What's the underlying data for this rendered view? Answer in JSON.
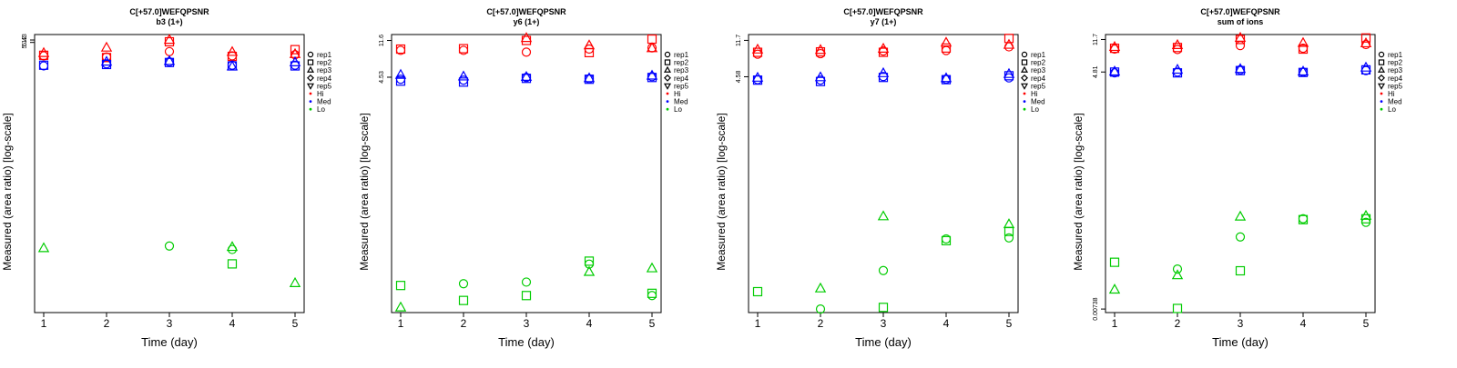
{
  "legend": {
    "shape_entries": [
      {
        "label": "rep1",
        "shape": "circle"
      },
      {
        "label": "rep2",
        "shape": "square"
      },
      {
        "label": "rep3",
        "shape": "triangle"
      },
      {
        "label": "rep4",
        "shape": "diamond"
      },
      {
        "label": "rep5",
        "shape": "triangle-down"
      }
    ],
    "color_entries": [
      {
        "label": "Hi",
        "color": "#ff0000"
      },
      {
        "label": "Med",
        "color": "#0000ff"
      },
      {
        "label": "Lo",
        "color": "#00cc00"
      }
    ]
  },
  "chart_data": [
    {
      "type": "scatter",
      "title": "C[+57.0]WEFQPSNR",
      "subtitle": "b3 (1+)",
      "xlabel": "Time (day)",
      "ylabel": "Measured (area ratio) [log-scale]",
      "log_y": true,
      "x_ticks": [
        "1",
        "2",
        "3",
        "4",
        "5"
      ],
      "y_ticks": [
        "5.43",
        "5.12"
      ],
      "ylim": [
        0.00738,
        6.2
      ],
      "grid": false,
      "legend_position": "right",
      "points": [
        {
          "x": 1,
          "y": 3.7,
          "rep": "rep1",
          "level": "Hi"
        },
        {
          "x": 1,
          "y": 3.75,
          "rep": "rep2",
          "level": "Hi"
        },
        {
          "x": 1,
          "y": 3.95,
          "rep": "rep3",
          "level": "Hi"
        },
        {
          "x": 1,
          "y": 2.9,
          "rep": "rep1",
          "level": "Med"
        },
        {
          "x": 1,
          "y": 2.95,
          "rep": "rep2",
          "level": "Med"
        },
        {
          "x": 1,
          "y": 0.035,
          "rep": "rep3",
          "level": "Lo"
        },
        {
          "x": 2,
          "y": 3.6,
          "rep": "rep1",
          "level": "Hi"
        },
        {
          "x": 2,
          "y": 3.55,
          "rep": "rep2",
          "level": "Hi"
        },
        {
          "x": 2,
          "y": 4.5,
          "rep": "rep3",
          "level": "Hi"
        },
        {
          "x": 2,
          "y": 3.05,
          "rep": "rep1",
          "level": "Med"
        },
        {
          "x": 2,
          "y": 3.0,
          "rep": "rep2",
          "level": "Med"
        },
        {
          "x": 2,
          "y": 3.2,
          "rep": "rep3",
          "level": "Med"
        },
        {
          "x": 3,
          "y": 4.1,
          "rep": "rep1",
          "level": "Hi"
        },
        {
          "x": 3,
          "y": 5.2,
          "rep": "rep2",
          "level": "Hi"
        },
        {
          "x": 3,
          "y": 5.43,
          "rep": "rep3",
          "level": "Hi"
        },
        {
          "x": 3,
          "y": 3.2,
          "rep": "rep1",
          "level": "Med"
        },
        {
          "x": 3,
          "y": 3.15,
          "rep": "rep2",
          "level": "Med"
        },
        {
          "x": 3,
          "y": 3.25,
          "rep": "rep3",
          "level": "Med"
        },
        {
          "x": 3,
          "y": 0.037,
          "rep": "rep1",
          "level": "Lo"
        },
        {
          "x": 4,
          "y": 3.7,
          "rep": "rep1",
          "level": "Hi"
        },
        {
          "x": 4,
          "y": 3.65,
          "rep": "rep2",
          "level": "Hi"
        },
        {
          "x": 4,
          "y": 4.05,
          "rep": "rep3",
          "level": "Hi"
        },
        {
          "x": 4,
          "y": 2.95,
          "rep": "rep1",
          "level": "Med"
        },
        {
          "x": 4,
          "y": 2.9,
          "rep": "rep2",
          "level": "Med"
        },
        {
          "x": 4,
          "y": 2.85,
          "rep": "rep3",
          "level": "Med"
        },
        {
          "x": 4,
          "y": 0.034,
          "rep": "rep1",
          "level": "Lo"
        },
        {
          "x": 4,
          "y": 0.024,
          "rep": "rep2",
          "level": "Lo"
        },
        {
          "x": 4,
          "y": 0.036,
          "rep": "rep3",
          "level": "Lo"
        },
        {
          "x": 5,
          "y": 3.8,
          "rep": "rep1",
          "level": "Hi"
        },
        {
          "x": 5,
          "y": 4.3,
          "rep": "rep2",
          "level": "Hi"
        },
        {
          "x": 5,
          "y": 3.85,
          "rep": "rep3",
          "level": "Hi"
        },
        {
          "x": 5,
          "y": 2.95,
          "rep": "rep1",
          "level": "Med"
        },
        {
          "x": 5,
          "y": 2.9,
          "rep": "rep2",
          "level": "Med"
        },
        {
          "x": 5,
          "y": 3.15,
          "rep": "rep3",
          "level": "Med"
        },
        {
          "x": 5,
          "y": 0.015,
          "rep": "rep3",
          "level": "Lo"
        }
      ]
    },
    {
      "type": "scatter",
      "title": "C[+57.0]WEFQPSNR",
      "subtitle": "y6 (1+)",
      "xlabel": "Time (day)",
      "ylabel": "Measured (area ratio) [log-scale]",
      "log_y": true,
      "x_ticks": [
        "1",
        "2",
        "3",
        "4",
        "5"
      ],
      "y_ticks": [
        "11.6",
        "4.53"
      ],
      "ylim": [
        0.011,
        13.5
      ],
      "grid": false,
      "legend_position": "right",
      "points": [
        {
          "x": 1,
          "y": 9.0,
          "rep": "rep1",
          "level": "Hi"
        },
        {
          "x": 1,
          "y": 9.3,
          "rep": "rep2",
          "level": "Hi"
        },
        {
          "x": 1,
          "y": 4.3,
          "rep": "rep1",
          "level": "Med"
        },
        {
          "x": 1,
          "y": 4.1,
          "rep": "rep2",
          "level": "Med"
        },
        {
          "x": 1,
          "y": 4.8,
          "rep": "rep3",
          "level": "Med"
        },
        {
          "x": 1,
          "y": 0.022,
          "rep": "rep2",
          "level": "Lo"
        },
        {
          "x": 1,
          "y": 0.0125,
          "rep": "rep3",
          "level": "Lo"
        },
        {
          "x": 2,
          "y": 9.0,
          "rep": "rep1",
          "level": "Hi"
        },
        {
          "x": 2,
          "y": 9.4,
          "rep": "rep2",
          "level": "Hi"
        },
        {
          "x": 2,
          "y": 4.2,
          "rep": "rep1",
          "level": "Med"
        },
        {
          "x": 2,
          "y": 4.0,
          "rep": "rep2",
          "level": "Med"
        },
        {
          "x": 2,
          "y": 4.6,
          "rep": "rep3",
          "level": "Med"
        },
        {
          "x": 2,
          "y": 0.023,
          "rep": "rep1",
          "level": "Lo"
        },
        {
          "x": 2,
          "y": 0.015,
          "rep": "rep2",
          "level": "Lo"
        },
        {
          "x": 3,
          "y": 8.6,
          "rep": "rep1",
          "level": "Hi"
        },
        {
          "x": 3,
          "y": 11.6,
          "rep": "rep2",
          "level": "Hi"
        },
        {
          "x": 3,
          "y": 12.3,
          "rep": "rep3",
          "level": "Hi"
        },
        {
          "x": 3,
          "y": 4.5,
          "rep": "rep1",
          "level": "Med"
        },
        {
          "x": 3,
          "y": 4.4,
          "rep": "rep2",
          "level": "Med"
        },
        {
          "x": 3,
          "y": 4.55,
          "rep": "rep3",
          "level": "Med"
        },
        {
          "x": 3,
          "y": 0.024,
          "rep": "rep1",
          "level": "Lo"
        },
        {
          "x": 3,
          "y": 0.017,
          "rep": "rep2",
          "level": "Lo"
        },
        {
          "x": 4,
          "y": 9.3,
          "rep": "rep1",
          "level": "Hi"
        },
        {
          "x": 4,
          "y": 8.5,
          "rep": "rep2",
          "level": "Hi"
        },
        {
          "x": 4,
          "y": 10.2,
          "rep": "rep3",
          "level": "Hi"
        },
        {
          "x": 4,
          "y": 4.35,
          "rep": "rep1",
          "level": "Med"
        },
        {
          "x": 4,
          "y": 4.3,
          "rep": "rep2",
          "level": "Med"
        },
        {
          "x": 4,
          "y": 4.4,
          "rep": "rep3",
          "level": "Med"
        },
        {
          "x": 4,
          "y": 0.038,
          "rep": "rep1",
          "level": "Lo"
        },
        {
          "x": 4,
          "y": 0.041,
          "rep": "rep2",
          "level": "Lo"
        },
        {
          "x": 4,
          "y": 0.031,
          "rep": "rep3",
          "level": "Lo"
        },
        {
          "x": 5,
          "y": 9.6,
          "rep": "rep1",
          "level": "Hi"
        },
        {
          "x": 5,
          "y": 12.0,
          "rep": "rep2",
          "level": "Hi"
        },
        {
          "x": 5,
          "y": 9.5,
          "rep": "rep3",
          "level": "Hi"
        },
        {
          "x": 5,
          "y": 4.6,
          "rep": "rep1",
          "level": "Med"
        },
        {
          "x": 5,
          "y": 4.5,
          "rep": "rep2",
          "level": "Med"
        },
        {
          "x": 5,
          "y": 4.7,
          "rep": "rep3",
          "level": "Med"
        },
        {
          "x": 5,
          "y": 0.017,
          "rep": "rep1",
          "level": "Lo"
        },
        {
          "x": 5,
          "y": 0.018,
          "rep": "rep2",
          "level": "Lo"
        },
        {
          "x": 5,
          "y": 0.034,
          "rep": "rep3",
          "level": "Lo"
        }
      ]
    },
    {
      "type": "scatter",
      "title": "C[+57.0]WEFQPSNR",
      "subtitle": "y7 (1+)",
      "xlabel": "Time (day)",
      "ylabel": "Measured (area ratio) [log-scale]",
      "log_y": true,
      "x_ticks": [
        "1",
        "2",
        "3",
        "4",
        "5"
      ],
      "y_ticks": [
        "11.7",
        "4.58"
      ],
      "ylim": [
        0.0105,
        13.6
      ],
      "grid": false,
      "legend_position": "right",
      "points": [
        {
          "x": 1,
          "y": 8.2,
          "rep": "rep1",
          "level": "Hi"
        },
        {
          "x": 1,
          "y": 8.6,
          "rep": "rep2",
          "level": "Hi"
        },
        {
          "x": 1,
          "y": 9.2,
          "rep": "rep3",
          "level": "Hi"
        },
        {
          "x": 1,
          "y": 4.25,
          "rep": "rep1",
          "level": "Med"
        },
        {
          "x": 1,
          "y": 4.2,
          "rep": "rep2",
          "level": "Med"
        },
        {
          "x": 1,
          "y": 4.45,
          "rep": "rep3",
          "level": "Med"
        },
        {
          "x": 1,
          "y": 0.018,
          "rep": "rep2",
          "level": "Lo"
        },
        {
          "x": 2,
          "y": 8.3,
          "rep": "rep1",
          "level": "Hi"
        },
        {
          "x": 2,
          "y": 8.7,
          "rep": "rep2",
          "level": "Hi"
        },
        {
          "x": 2,
          "y": 9.1,
          "rep": "rep3",
          "level": "Hi"
        },
        {
          "x": 2,
          "y": 4.2,
          "rep": "rep1",
          "level": "Med"
        },
        {
          "x": 2,
          "y": 4.05,
          "rep": "rep2",
          "level": "Med"
        },
        {
          "x": 2,
          "y": 4.5,
          "rep": "rep3",
          "level": "Med"
        },
        {
          "x": 2,
          "y": 0.0115,
          "rep": "rep1",
          "level": "Lo"
        },
        {
          "x": 2,
          "y": 0.0195,
          "rep": "rep3",
          "level": "Lo"
        },
        {
          "x": 3,
          "y": 8.9,
          "rep": "rep1",
          "level": "Hi"
        },
        {
          "x": 3,
          "y": 8.6,
          "rep": "rep2",
          "level": "Hi"
        },
        {
          "x": 3,
          "y": 9.4,
          "rep": "rep3",
          "level": "Hi"
        },
        {
          "x": 3,
          "y": 4.6,
          "rep": "rep1",
          "level": "Med"
        },
        {
          "x": 3,
          "y": 4.5,
          "rep": "rep2",
          "level": "Med"
        },
        {
          "x": 3,
          "y": 5.0,
          "rep": "rep3",
          "level": "Med"
        },
        {
          "x": 3,
          "y": 0.031,
          "rep": "rep1",
          "level": "Lo"
        },
        {
          "x": 3,
          "y": 0.012,
          "rep": "rep2",
          "level": "Lo"
        },
        {
          "x": 3,
          "y": 0.125,
          "rep": "rep3",
          "level": "Lo"
        },
        {
          "x": 4,
          "y": 9.0,
          "rep": "rep1",
          "level": "Hi"
        },
        {
          "x": 4,
          "y": 9.6,
          "rep": "rep2",
          "level": "Hi"
        },
        {
          "x": 4,
          "y": 11.0,
          "rep": "rep3",
          "level": "Hi"
        },
        {
          "x": 4,
          "y": 4.3,
          "rep": "rep1",
          "level": "Med"
        },
        {
          "x": 4,
          "y": 4.25,
          "rep": "rep2",
          "level": "Med"
        },
        {
          "x": 4,
          "y": 4.4,
          "rep": "rep3",
          "level": "Med"
        },
        {
          "x": 4,
          "y": 0.07,
          "rep": "rep1",
          "level": "Lo"
        },
        {
          "x": 4,
          "y": 0.067,
          "rep": "rep2",
          "level": "Lo"
        },
        {
          "x": 5,
          "y": 9.9,
          "rep": "rep1",
          "level": "Hi"
        },
        {
          "x": 5,
          "y": 12.3,
          "rep": "rep2",
          "level": "Hi"
        },
        {
          "x": 5,
          "y": 10.4,
          "rep": "rep3",
          "level": "Hi"
        },
        {
          "x": 5,
          "y": 4.45,
          "rep": "rep1",
          "level": "Med"
        },
        {
          "x": 5,
          "y": 4.7,
          "rep": "rep2",
          "level": "Med"
        },
        {
          "x": 5,
          "y": 4.9,
          "rep": "rep3",
          "level": "Med"
        },
        {
          "x": 5,
          "y": 0.072,
          "rep": "rep1",
          "level": "Lo"
        },
        {
          "x": 5,
          "y": 0.085,
          "rep": "rep2",
          "level": "Lo"
        },
        {
          "x": 5,
          "y": 0.102,
          "rep": "rep3",
          "level": "Lo"
        }
      ]
    },
    {
      "type": "scatter",
      "title": "C[+57.0]WEFQPSNR",
      "subtitle": "sum of ions",
      "xlabel": "Time (day)",
      "ylabel": "Measured (area ratio) [log-scale]",
      "log_y": true,
      "x_ticks": [
        "1",
        "2",
        "3",
        "4",
        "5"
      ],
      "y_ticks": [
        "11.7",
        "4.81",
        "0.00738"
      ],
      "ylim": [
        0.0067,
        13.4
      ],
      "grid": false,
      "legend_position": "right",
      "points": [
        {
          "x": 1,
          "y": 9.0,
          "rep": "rep1",
          "level": "Hi"
        },
        {
          "x": 1,
          "y": 9.2,
          "rep": "rep2",
          "level": "Hi"
        },
        {
          "x": 1,
          "y": 9.5,
          "rep": "rep3",
          "level": "Hi"
        },
        {
          "x": 1,
          "y": 4.7,
          "rep": "rep1",
          "level": "Med"
        },
        {
          "x": 1,
          "y": 4.8,
          "rep": "rep2",
          "level": "Med"
        },
        {
          "x": 1,
          "y": 4.85,
          "rep": "rep3",
          "level": "Med"
        },
        {
          "x": 1,
          "y": 0.0265,
          "rep": "rep2",
          "level": "Lo"
        },
        {
          "x": 1,
          "y": 0.0125,
          "rep": "rep3",
          "level": "Lo"
        },
        {
          "x": 2,
          "y": 8.9,
          "rep": "rep1",
          "level": "Hi"
        },
        {
          "x": 2,
          "y": 9.4,
          "rep": "rep2",
          "level": "Hi"
        },
        {
          "x": 2,
          "y": 10.0,
          "rep": "rep3",
          "level": "Hi"
        },
        {
          "x": 2,
          "y": 4.8,
          "rep": "rep1",
          "level": "Med"
        },
        {
          "x": 2,
          "y": 4.7,
          "rep": "rep2",
          "level": "Med"
        },
        {
          "x": 2,
          "y": 5.1,
          "rep": "rep3",
          "level": "Med"
        },
        {
          "x": 2,
          "y": 0.022,
          "rep": "rep1",
          "level": "Lo"
        },
        {
          "x": 2,
          "y": 0.0075,
          "rep": "rep2",
          "level": "Lo"
        },
        {
          "x": 2,
          "y": 0.0185,
          "rep": "rep3",
          "level": "Lo"
        },
        {
          "x": 3,
          "y": 9.9,
          "rep": "rep1",
          "level": "Hi"
        },
        {
          "x": 3,
          "y": 11.7,
          "rep": "rep2",
          "level": "Hi"
        },
        {
          "x": 3,
          "y": 12.2,
          "rep": "rep3",
          "level": "Hi"
        },
        {
          "x": 3,
          "y": 5.1,
          "rep": "rep1",
          "level": "Med"
        },
        {
          "x": 3,
          "y": 5.0,
          "rep": "rep2",
          "level": "Med"
        },
        {
          "x": 3,
          "y": 5.2,
          "rep": "rep3",
          "level": "Med"
        },
        {
          "x": 3,
          "y": 0.053,
          "rep": "rep1",
          "level": "Lo"
        },
        {
          "x": 3,
          "y": 0.021,
          "rep": "rep2",
          "level": "Lo"
        },
        {
          "x": 3,
          "y": 0.092,
          "rep": "rep3",
          "level": "Lo"
        },
        {
          "x": 4,
          "y": 9.2,
          "rep": "rep1",
          "level": "Hi"
        },
        {
          "x": 4,
          "y": 9.0,
          "rep": "rep2",
          "level": "Hi"
        },
        {
          "x": 4,
          "y": 10.6,
          "rep": "rep3",
          "level": "Hi"
        },
        {
          "x": 4,
          "y": 4.8,
          "rep": "rep1",
          "level": "Med"
        },
        {
          "x": 4,
          "y": 4.75,
          "rep": "rep2",
          "level": "Med"
        },
        {
          "x": 4,
          "y": 4.85,
          "rep": "rep3",
          "level": "Med"
        },
        {
          "x": 4,
          "y": 0.087,
          "rep": "rep1",
          "level": "Lo"
        },
        {
          "x": 4,
          "y": 0.085,
          "rep": "rep2",
          "level": "Lo"
        },
        {
          "x": 5,
          "y": 10.2,
          "rep": "rep1",
          "level": "Hi"
        },
        {
          "x": 5,
          "y": 12.2,
          "rep": "rep2",
          "level": "Hi"
        },
        {
          "x": 5,
          "y": 10.5,
          "rep": "rep3",
          "level": "Hi"
        },
        {
          "x": 5,
          "y": 5.0,
          "rep": "rep1",
          "level": "Med"
        },
        {
          "x": 5,
          "y": 5.1,
          "rep": "rep2",
          "level": "Med"
        },
        {
          "x": 5,
          "y": 5.4,
          "rep": "rep3",
          "level": "Med"
        },
        {
          "x": 5,
          "y": 0.079,
          "rep": "rep1",
          "level": "Lo"
        },
        {
          "x": 5,
          "y": 0.087,
          "rep": "rep2",
          "level": "Lo"
        },
        {
          "x": 5,
          "y": 0.094,
          "rep": "rep3",
          "level": "Lo"
        }
      ]
    }
  ]
}
